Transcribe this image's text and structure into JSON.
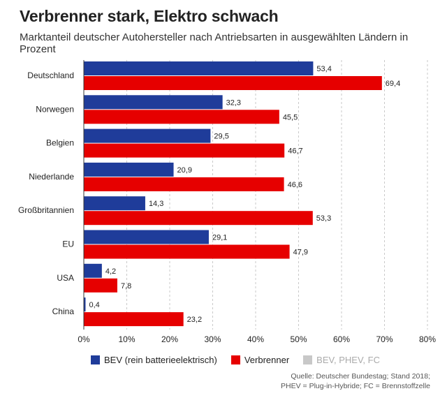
{
  "header": {
    "title": "Verbrenner stark, Elektro schwach",
    "subtitle": "Marktanteil deutscher Autohersteller nach Antriebsarten in ausgewählten Ländern in Prozent"
  },
  "chart_data": {
    "type": "bar",
    "orientation": "horizontal",
    "categories": [
      "Deutschland",
      "Norwegen",
      "Belgien",
      "Niederlande",
      "Großbritannien",
      "EU",
      "USA",
      "China"
    ],
    "series": [
      {
        "name": "BEV (rein batterieelektrisch)",
        "color": "#1f3c9a",
        "values": [
          53.4,
          32.3,
          29.5,
          20.9,
          14.3,
          29.1,
          4.2,
          0.4
        ],
        "labels": [
          "53,4",
          "32,3",
          "29,5",
          "20,9",
          "14,3",
          "29,1",
          "4,2",
          "0,4"
        ]
      },
      {
        "name": "Verbrenner",
        "color": "#e60000",
        "values": [
          69.4,
          45.5,
          46.7,
          46.6,
          53.3,
          47.9,
          7.8,
          23.2
        ],
        "labels": [
          "69,4",
          "45,5",
          "46,7",
          "46,6",
          "53,3",
          "47,9",
          "7,8",
          "23,2"
        ]
      }
    ],
    "xlim": [
      0,
      80
    ],
    "ticks": [
      0,
      10,
      20,
      30,
      40,
      50,
      60,
      70,
      80
    ],
    "tick_labels": [
      "0%",
      "10%",
      "20%",
      "30%",
      "40%",
      "50%",
      "60%",
      "70%",
      "80%"
    ],
    "grid": "vertical dashed",
    "legend": {
      "placement": "bottom-left",
      "items": [
        {
          "label": "BEV (rein batterieelektrisch)",
          "color": "#1f3c9a",
          "active": true
        },
        {
          "label": "Verbrenner",
          "color": "#e60000",
          "active": true
        },
        {
          "label": "BEV, PHEV, FC",
          "color": "#c8c8c8",
          "active": false
        }
      ]
    }
  },
  "source": {
    "line1": "Quelle: Deutscher Bundestag; Stand 2018;",
    "line2": "PHEV = Plug-in-Hybride; FC = Brennstoffzelle"
  }
}
